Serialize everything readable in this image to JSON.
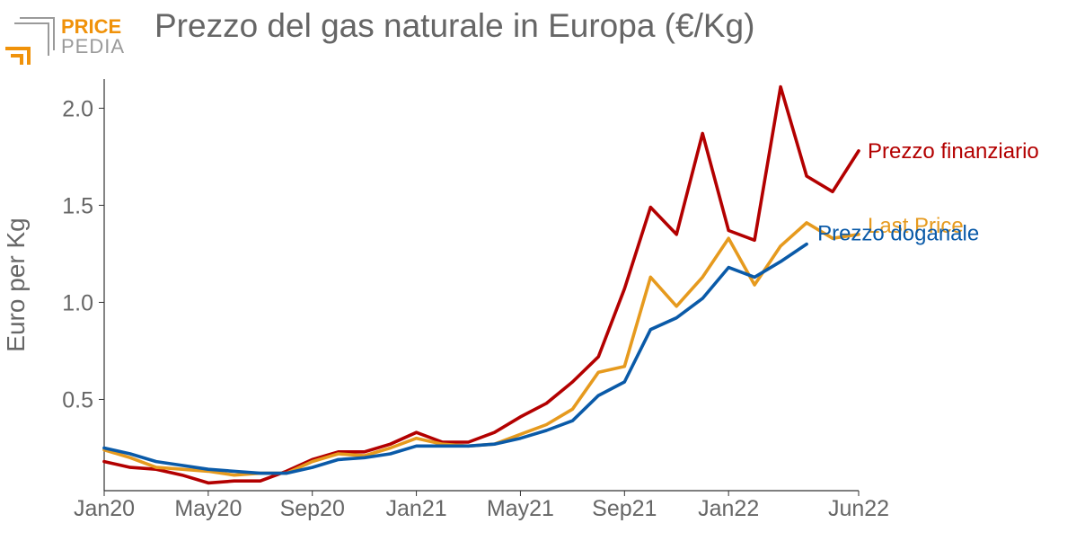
{
  "header": {
    "title": "Prezzo del gas naturale in Europa (€/Kg)",
    "logo_text_top": "PRICE",
    "logo_text_bottom": "PEDIA"
  },
  "colors": {
    "finanziario": "#b30000",
    "last_price": "#e69a1e",
    "doganale": "#0a5aa8",
    "text": "#666666",
    "logo_orange": "#f0920a",
    "logo_gray": "#9a9a9a"
  },
  "chart_data": {
    "type": "line",
    "title": "Prezzo del gas naturale in Europa (€/Kg)",
    "xlabel": "",
    "ylabel": "Euro per Kg",
    "ylim": [
      0.03,
      2.15
    ],
    "y_ticks": [
      0.5,
      1.0,
      1.5,
      2.0
    ],
    "y_tick_labels": [
      "0.5",
      "1.0",
      "1.5",
      "2.0"
    ],
    "x_ticks": [
      0,
      4,
      8,
      12,
      16,
      20,
      24,
      29
    ],
    "x_tick_labels": [
      "Jan20",
      "May20",
      "Sep20",
      "Jan21",
      "May21",
      "Sep21",
      "Jan22",
      "Jun22"
    ],
    "x_range": [
      0,
      29
    ],
    "grid": false,
    "legend": "direct labels at line ends",
    "series": [
      {
        "key": "finanziario",
        "name": "Prezzo finanziario",
        "x": [
          0,
          1,
          2,
          3,
          4,
          5,
          6,
          7,
          8,
          9,
          10,
          11,
          12,
          13,
          14,
          15,
          16,
          17,
          18,
          19,
          20,
          21,
          22,
          23,
          24,
          25,
          26,
          27,
          28,
          29
        ],
        "values": [
          0.18,
          0.15,
          0.14,
          0.11,
          0.07,
          0.08,
          0.08,
          0.13,
          0.19,
          0.23,
          0.23,
          0.27,
          0.33,
          0.28,
          0.28,
          0.33,
          0.41,
          0.48,
          0.59,
          0.72,
          1.07,
          1.49,
          1.35,
          1.87,
          1.37,
          1.32,
          2.11,
          1.65,
          1.57,
          1.78
        ]
      },
      {
        "key": "last_price",
        "name": "Last Price",
        "x": [
          0,
          1,
          2,
          3,
          4,
          5,
          6,
          7,
          8,
          9,
          10,
          11,
          12,
          13,
          14,
          15,
          16,
          17,
          18,
          19,
          20,
          21,
          22,
          23,
          24,
          25,
          26,
          27,
          28,
          29
        ],
        "values": [
          0.24,
          0.2,
          0.15,
          0.14,
          0.13,
          0.11,
          0.12,
          0.12,
          0.18,
          0.22,
          0.21,
          0.25,
          0.3,
          0.27,
          0.26,
          0.27,
          0.32,
          0.37,
          0.45,
          0.64,
          0.67,
          1.13,
          0.98,
          1.13,
          1.33,
          1.09,
          1.29,
          1.41,
          1.33,
          1.35
        ]
      },
      {
        "key": "doganale",
        "name": "Prezzo doganale",
        "x": [
          0,
          1,
          2,
          3,
          4,
          5,
          6,
          7,
          8,
          9,
          10,
          11,
          12,
          13,
          14,
          15,
          16,
          17,
          18,
          19,
          20,
          21,
          22,
          23,
          24,
          25,
          26,
          27
        ],
        "values": [
          0.25,
          0.22,
          0.18,
          0.16,
          0.14,
          0.13,
          0.12,
          0.12,
          0.15,
          0.19,
          0.2,
          0.22,
          0.26,
          0.26,
          0.26,
          0.27,
          0.3,
          0.34,
          0.39,
          0.52,
          0.59,
          0.86,
          0.92,
          1.02,
          1.18,
          1.13,
          1.21,
          1.3
        ]
      }
    ]
  }
}
